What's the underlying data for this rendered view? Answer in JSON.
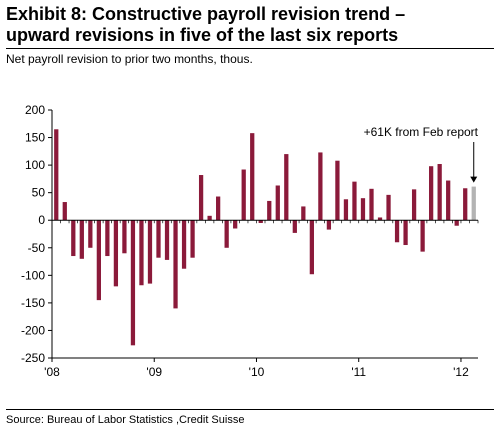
{
  "header": {
    "title_line1": "Exhibit 8: Constructive payroll revision trend –",
    "title_line2": "upward revisions in five of the last six reports",
    "subtitle": "Net payroll revision to prior two months, thous."
  },
  "footer": {
    "source": "Source: Bureau of Labor Statistics ,Credit Suisse"
  },
  "chart_data": {
    "type": "bar",
    "ylim": [
      -250,
      200
    ],
    "yticks": [
      200,
      150,
      100,
      50,
      0,
      -50,
      -100,
      -150,
      -200,
      -250
    ],
    "xtick_labels": [
      "'08",
      "'09",
      "'10",
      "'11",
      "'12"
    ],
    "xtick_positions": [
      0,
      12,
      24,
      36,
      48
    ],
    "grid": false,
    "bar_color": "#8b1a3a",
    "highlight_color": "#b3b3b3",
    "annotation": {
      "text": "+61K from Feb report",
      "target_index": 49
    },
    "values": [
      165,
      33,
      -65,
      -70,
      -50,
      -145,
      -65,
      -120,
      -60,
      -227,
      -118,
      -115,
      -68,
      -72,
      -160,
      -88,
      -68,
      82,
      8,
      43,
      -50,
      -15,
      92,
      158,
      -5,
      35,
      63,
      120,
      -23,
      25,
      -98,
      123,
      -17,
      108,
      38,
      70,
      40,
      57,
      5,
      46,
      -40,
      -45,
      56,
      -57,
      98,
      102,
      72,
      -10,
      58,
      61
    ],
    "highlight_index": 49
  }
}
